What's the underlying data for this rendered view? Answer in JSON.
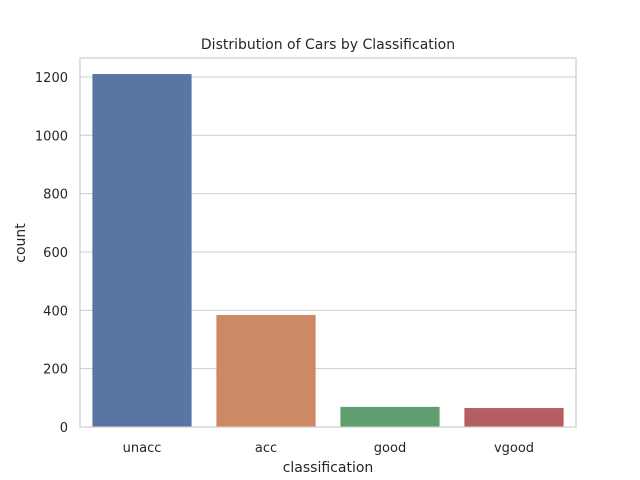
{
  "chart_data": {
    "type": "bar",
    "title": "Distribution of Cars by Classification",
    "xlabel": "classification",
    "ylabel": "count",
    "categories": [
      "unacc",
      "acc",
      "good",
      "vgood"
    ],
    "values": [
      1210,
      384,
      69,
      65
    ],
    "colors": [
      "#5975a4",
      "#cc8963",
      "#5f9e6e",
      "#b55d60"
    ],
    "ylim": [
      0,
      1265
    ],
    "yticks": [
      0,
      200,
      400,
      600,
      800,
      1000,
      1200
    ],
    "grid": true
  }
}
